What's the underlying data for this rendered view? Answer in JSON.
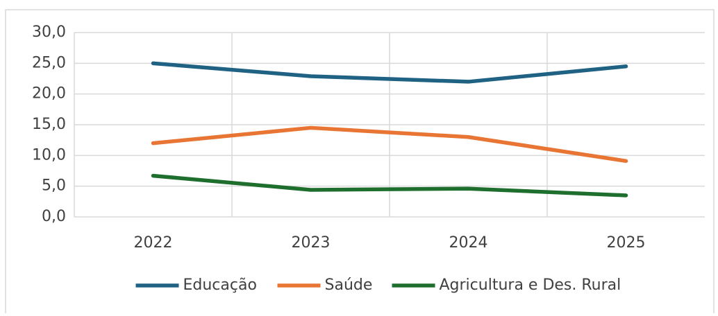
{
  "chart_data": {
    "type": "line",
    "categories": [
      "2022",
      "2023",
      "2024",
      "2025"
    ],
    "series": [
      {
        "name": "Educação",
        "color": "#1f6284",
        "values": [
          25.0,
          22.9,
          22.0,
          24.5
        ]
      },
      {
        "name": "Saúde",
        "color": "#e87533",
        "values": [
          12.0,
          14.5,
          13.0,
          9.1
        ]
      },
      {
        "name": "Agricultura e Des. Rural",
        "color": "#1e6e2e",
        "values": [
          6.7,
          4.4,
          4.6,
          3.5
        ]
      }
    ],
    "ylim": [
      0,
      30
    ],
    "yticks": [
      {
        "value": 0,
        "label": "0,0"
      },
      {
        "value": 5,
        "label": "5,0"
      },
      {
        "value": 10,
        "label": "10,0"
      },
      {
        "value": 15,
        "label": "15,0"
      },
      {
        "value": 20,
        "label": "20,0"
      },
      {
        "value": 25,
        "label": "25,0"
      },
      {
        "value": 30,
        "label": "30,0"
      }
    ],
    "grid": true,
    "legend": "bottom"
  }
}
